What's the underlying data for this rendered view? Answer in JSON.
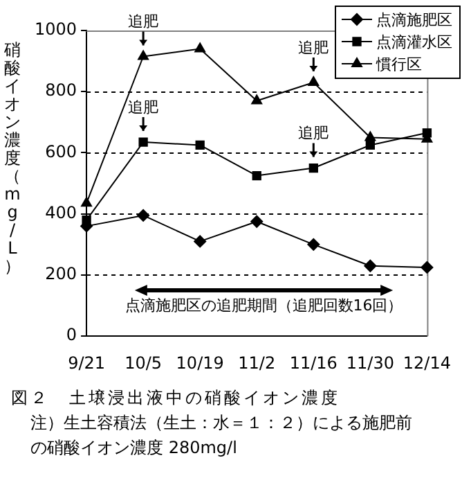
{
  "chart_data": {
    "type": "line",
    "title": "図２　土壌浸出液中の硝酸イオン濃度",
    "ylabel": "硝酸イオン濃度（mg/L）",
    "categories": [
      "9/21",
      "10/5",
      "10/19",
      "11/2",
      "11/16",
      "11/30",
      "12/14"
    ],
    "series": [
      {
        "name": "点滴施肥区",
        "color": "#000000",
        "marker": "diamond",
        "values": [
          360,
          395,
          310,
          375,
          300,
          230,
          225
        ]
      },
      {
        "name": "点滴灌水区",
        "color": "#000000",
        "marker": "square",
        "values": [
          380,
          635,
          625,
          525,
          550,
          625,
          665
        ]
      },
      {
        "name": "慣行区",
        "color": "#000000",
        "marker": "triangle",
        "values": [
          435,
          915,
          940,
          770,
          830,
          650,
          645
        ]
      }
    ],
    "ylim": [
      0,
      1000
    ],
    "yticks": [
      0,
      200,
      400,
      600,
      800,
      1000
    ],
    "grid": "y",
    "legend": "top right",
    "annotations": [
      {
        "text": "追肥",
        "x": "10/5",
        "y": 915
      },
      {
        "text": "追肥",
        "x": "11/16",
        "y": 830
      },
      {
        "text": "追肥",
        "x": "10/5",
        "y": 635
      },
      {
        "text": "追肥",
        "x": "11/16",
        "y": 550
      },
      "点滴施肥区の追肥期間（追肥回数16回）",
      "注）生土容積法（生土：水＝１：２）による施肥前の硝酸イオン濃度 280mg/l"
    ]
  }
}
